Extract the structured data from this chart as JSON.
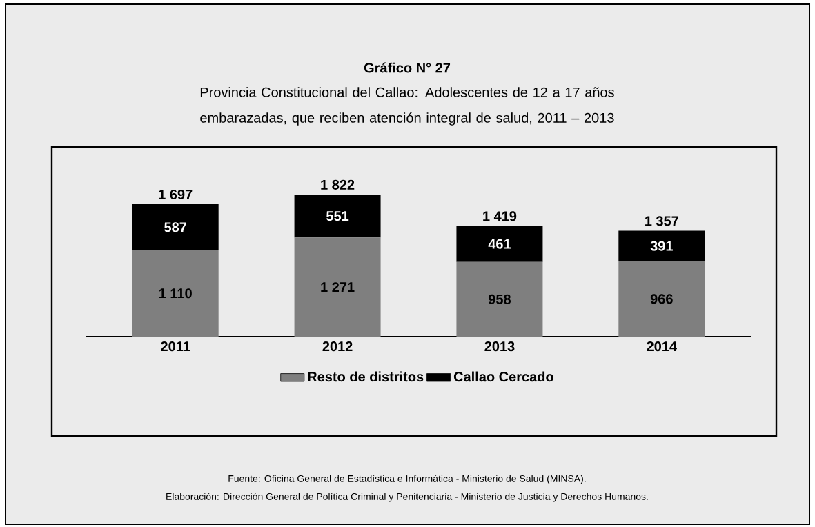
{
  "chart_data": {
    "type": "bar",
    "stacked": true,
    "title": "Gráfico N° 27",
    "subtitle": "Provincia Constitucional del Callao: Adolescentes de 12 a 17 años embarazadas, que reciben atención integral de salud, 2011 – 2013",
    "categories": [
      "2011",
      "2012",
      "2013",
      "2014"
    ],
    "series": [
      {
        "name": "Resto de distritos",
        "color": "#7f7f7f",
        "values": [
          1110,
          1271,
          958,
          966
        ],
        "value_labels": [
          "1 110",
          "1 271",
          "958",
          "966"
        ]
      },
      {
        "name": "Callao Cercado",
        "color": "#000000",
        "values": [
          587,
          551,
          461,
          391
        ],
        "value_labels": [
          "587",
          "551",
          "461",
          "391"
        ]
      }
    ],
    "totals": [
      "1 697",
      "1 822",
      "1 419",
      "1 357"
    ],
    "legend": "bottom",
    "annotations": [
      "Fuente: Oficina General de Estadística e Informática - Ministerio de Salud (MINSA).",
      "Elaboración: Dirección General de Política Criminal y Penitenciaria - Ministerio de Justicia y Derechos Humanos."
    ]
  }
}
